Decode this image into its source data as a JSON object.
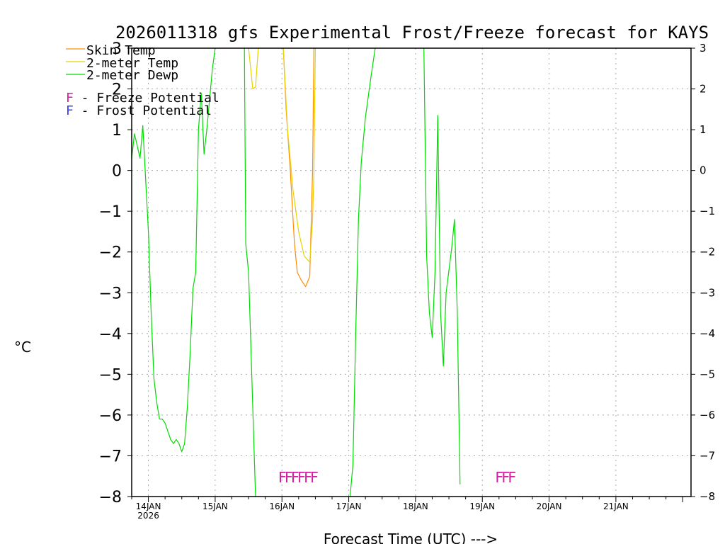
{
  "chart_data": {
    "type": "line",
    "title": "2026011318 gfs Experimental Frost/Freeze forecast for KAYS",
    "xlabel": "Forecast Time (UTC) --->",
    "ylabel": "°C",
    "ylim": [
      -8,
      3
    ],
    "yticks": [
      3,
      2,
      1,
      0,
      -1,
      -2,
      -3,
      -4,
      -5,
      -6,
      -7,
      -8
    ],
    "xlim": [
      0,
      201
    ],
    "grid": true,
    "x_ticks": [
      {
        "x": 6,
        "label": "14JAN",
        "sub": "2026"
      },
      {
        "x": 30,
        "label": "15JAN",
        "sub": ""
      },
      {
        "x": 54,
        "label": "16JAN",
        "sub": ""
      },
      {
        "x": 78,
        "label": "17JAN",
        "sub": ""
      },
      {
        "x": 102,
        "label": "18JAN",
        "sub": ""
      },
      {
        "x": 126,
        "label": "19JAN",
        "sub": ""
      },
      {
        "x": 150,
        "label": "20JAN",
        "sub": ""
      },
      {
        "x": 174,
        "label": "21JAN",
        "sub": ""
      }
    ],
    "series": [
      {
        "name": "Skin Temp",
        "color": "#ff8c00",
        "points": [
          [
            54.5,
            3
          ],
          [
            55.5,
            1.5
          ],
          [
            57,
            0
          ],
          [
            58.5,
            -1.8
          ],
          [
            59.5,
            -2.5
          ],
          [
            61,
            -2.7
          ],
          [
            62.5,
            -2.85
          ],
          [
            64,
            -2.6
          ],
          [
            65,
            0
          ],
          [
            65.5,
            3
          ]
        ]
      },
      {
        "name": "2-meter Temp",
        "color": "#e6d200",
        "points": [
          [
            42,
            3
          ],
          [
            43.5,
            2
          ],
          [
            44.5,
            2.05
          ],
          [
            45.5,
            3
          ]
        ],
        "points2": [
          [
            54.5,
            3
          ],
          [
            56,
            1
          ],
          [
            58,
            -0.5
          ],
          [
            60,
            -1.5
          ],
          [
            62,
            -2.1
          ],
          [
            64,
            -2.25
          ],
          [
            65,
            -1.2
          ],
          [
            65.5,
            0
          ],
          [
            66,
            3
          ]
        ]
      },
      {
        "name": "2-meter Dewp",
        "color": "#00dc00",
        "points": [
          [
            0,
            0.3
          ],
          [
            1,
            0.9
          ],
          [
            3,
            0.3
          ],
          [
            4,
            1.1
          ],
          [
            6,
            -1.5
          ],
          [
            7,
            -3.5
          ],
          [
            8,
            -5.1
          ],
          [
            9,
            -5.7
          ],
          [
            10,
            -6.1
          ],
          [
            11,
            -6.1
          ],
          [
            12,
            -6.2
          ],
          [
            14,
            -6.6
          ],
          [
            15,
            -6.7
          ],
          [
            16,
            -6.6
          ],
          [
            17,
            -6.7
          ],
          [
            18,
            -6.9
          ],
          [
            19,
            -6.7
          ],
          [
            20,
            -5.8
          ],
          [
            21,
            -4.5
          ],
          [
            22,
            -2.9
          ],
          [
            23,
            -2.5
          ],
          [
            24,
            1
          ],
          [
            25,
            1.9
          ],
          [
            26,
            0.4
          ],
          [
            27,
            1
          ],
          [
            29,
            2.5
          ],
          [
            30,
            3
          ]
        ],
        "points2": [
          [
            40.5,
            3
          ],
          [
            41,
            -1.8
          ],
          [
            42,
            -2.5
          ],
          [
            44.5,
            -8
          ]
        ],
        "points3": [
          [
            78.5,
            -8
          ],
          [
            79.5,
            -7.2
          ],
          [
            80.5,
            -4
          ],
          [
            81.5,
            -1.2
          ],
          [
            82.5,
            0.2
          ],
          [
            84,
            1.3
          ],
          [
            86,
            2.3
          ],
          [
            87.5,
            3
          ]
        ],
        "points4": [
          [
            105,
            3
          ],
          [
            106,
            -2.1
          ],
          [
            107,
            -3.5
          ],
          [
            108,
            -4.1
          ],
          [
            109,
            -2.5
          ],
          [
            110,
            1.35
          ],
          [
            111,
            -3.5
          ],
          [
            112,
            -4.8
          ],
          [
            113,
            -3
          ],
          [
            115,
            -1.9
          ],
          [
            116,
            -1.2
          ],
          [
            117,
            -3.5
          ],
          [
            118,
            -7.7
          ]
        ]
      }
    ],
    "freeze_markers": [
      {
        "x": 59.5,
        "text": "FFFFFF"
      },
      {
        "x": 134,
        "text": "FFF"
      }
    ]
  },
  "legend": {
    "skin": "Skin Temp",
    "t2m": "2-meter Temp",
    "dewp": "2-meter Dewp",
    "freeze": "F - Freeze Potential",
    "frost": "F - Frost Potential",
    "freeze_color": "#d21ea0",
    "frost_color": "#3c3cf0"
  }
}
